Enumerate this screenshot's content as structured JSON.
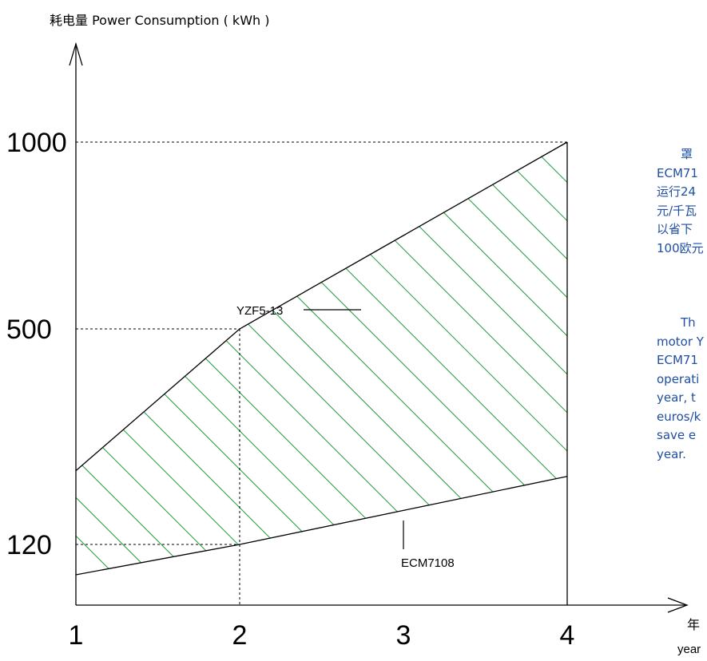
{
  "chart_data": {
    "type": "area",
    "ylabel": "耗电量 Power Consumption ( kWh )",
    "xlabel_cn": "年",
    "xlabel_en": "year",
    "x_ticks": [
      "1",
      "2",
      "3",
      "4"
    ],
    "y_ticks": [
      "120",
      "500",
      "1000"
    ],
    "series": [
      {
        "name": "YZF5-13",
        "x": [
          1,
          2,
          3,
          4
        ],
        "y": [
          250,
          500,
          750,
          1000
        ]
      },
      {
        "name": "ECM7108",
        "x": [
          1,
          2,
          3,
          4
        ],
        "y": [
          60,
          120,
          180,
          240
        ]
      }
    ],
    "shaded_region": "between YZF5-13 and ECM7108",
    "reference_lines": [
      {
        "x": 2,
        "y": 500
      },
      {
        "x": 2,
        "y": 120
      },
      {
        "x": 4,
        "y": 1000
      }
    ],
    "colors": {
      "hatch": "#1a9a3c",
      "line": "#000000",
      "text_blue": "#1f4ea3"
    }
  },
  "side_text": {
    "cn": [
      "　　罩",
      "ECM71",
      "运行24",
      "元/千瓦",
      "以省下",
      "100欧元"
    ],
    "en": [
      "　　Th",
      "motor Y",
      "ECM71",
      "operati",
      "year,  t",
      "euros/k",
      "save   e",
      "year."
    ]
  }
}
